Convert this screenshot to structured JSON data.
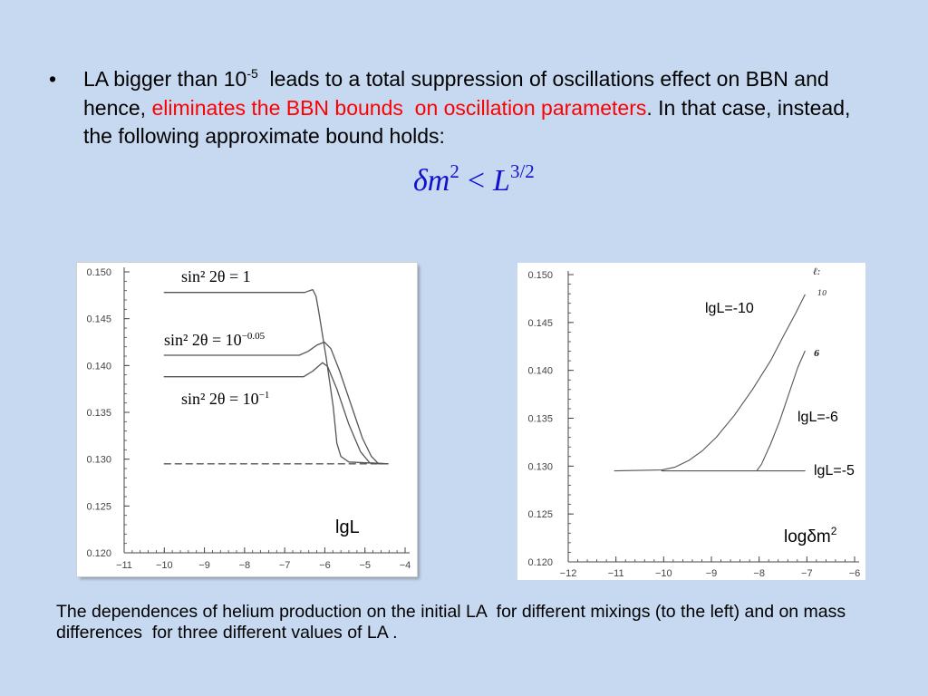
{
  "slide": {
    "bullet_symbol": "•",
    "bullet": {
      "l1_a": "LA bigger than 10",
      "l1_sup": "-5",
      "l1_b": "  leads to a total suppression of oscillations effect on BBN and",
      "l2_a": "hence, ",
      "l2_red": "eliminates the BBN bounds  on oscillation parameters",
      "l2_b": ". In that case, instead,",
      "l3": "the following approximate bound holds:"
    },
    "formula": {
      "lhs": "δm",
      "lhs_sup": "2",
      "op": "<",
      "rhs": "L",
      "rhs_sup": "3/2"
    },
    "caption": {
      "line1": "The dependences of helium production on the initial LA  for different mixings (to the left) and on mass",
      "line2": "differences  for three different values of LA ."
    }
  },
  "colors": {
    "background": "#c6d9f0",
    "text": "#000000",
    "highlight": "#ff0000",
    "formula": "#1212cc",
    "chart_background": "#ffffff",
    "curve": "#555555",
    "axis": "#444444"
  },
  "chart_data": [
    {
      "type": "line",
      "title": "",
      "xlabel": "lgL",
      "ylabel": "",
      "xlim": [
        -11,
        -4
      ],
      "ylim": [
        0.12,
        0.15
      ],
      "grid": false,
      "x_ticks": [
        -11,
        -10,
        -9,
        -8,
        -7,
        -6,
        -5,
        -4
      ],
      "x_tick_labels": [
        "−11",
        "−10",
        "−9",
        "−8",
        "−7",
        "−6",
        "−5",
        "−4"
      ],
      "y_ticks": [
        0.15,
        0.145,
        0.14,
        0.135,
        0.13,
        0.125,
        0.12
      ],
      "y_tick_labels": [
        "0.150",
        "0.145",
        "0.140",
        "0.135",
        "0.130",
        "0.125",
        "0.120"
      ],
      "series": [
        {
          "name": "sin² 2θ = 1",
          "style": "solid",
          "x": [
            -10.0,
            -6.5,
            -6.38,
            -6.3,
            -6.22,
            -6.15,
            -5.97,
            -5.79,
            -5.7,
            -5.6,
            -5.4,
            -4.43
          ],
          "y": [
            0.1478,
            0.1478,
            0.148,
            0.1481,
            0.1474,
            0.1457,
            0.1409,
            0.1356,
            0.1317,
            0.1303,
            0.1297,
            0.1295
          ]
        },
        {
          "name": "sin² 2θ = 10",
          "name_exp": "−0.05",
          "style": "solid",
          "x": [
            -10.0,
            -6.64,
            -6.42,
            -6.19,
            -6.01,
            -5.85,
            -5.63,
            -5.29,
            -5.06,
            -4.84,
            -4.66,
            -4.43
          ],
          "y": [
            0.1411,
            0.1411,
            0.1415,
            0.1422,
            0.1425,
            0.1418,
            0.1394,
            0.1351,
            0.1322,
            0.1303,
            0.1295,
            0.1295
          ]
        },
        {
          "name": "sin² 2θ = 10",
          "name_exp": "−1",
          "style": "solid",
          "x": [
            -10.0,
            -6.53,
            -6.3,
            -6.06,
            -5.93,
            -5.7,
            -5.4,
            -5.11,
            -4.88,
            -4.43
          ],
          "y": [
            0.1388,
            0.1388,
            0.1394,
            0.1403,
            0.1399,
            0.1375,
            0.1337,
            0.1308,
            0.1296,
            0.1295
          ]
        },
        {
          "style": "dashed",
          "x": [
            -10.0,
            -4.43
          ],
          "y": [
            0.1295,
            0.1295
          ]
        }
      ]
    },
    {
      "type": "line",
      "title": "",
      "xlabel": "logδm",
      "xlabel_sup": "2",
      "ylabel": "",
      "xlim": [
        -12,
        -6
      ],
      "ylim": [
        0.12,
        0.15
      ],
      "grid": false,
      "x_ticks": [
        -12,
        -11,
        -10,
        -9,
        -8,
        -7,
        -6
      ],
      "x_tick_labels": [
        "−12",
        "−11",
        "−10",
        "−9",
        "−8",
        "−7",
        "−6"
      ],
      "y_ticks": [
        0.15,
        0.145,
        0.14,
        0.135,
        0.13,
        0.125,
        0.12
      ],
      "y_tick_labels": [
        "0.150",
        "0.145",
        "0.140",
        "0.135",
        "0.130",
        "0.125",
        "0.120"
      ],
      "end_labels": [
        "ℓ:",
        "10",
        "6"
      ],
      "series": [
        {
          "name": "lgL=-10",
          "style": "solid",
          "x": [
            -11.03,
            -10.04,
            -9.76,
            -9.47,
            -9.19,
            -8.9,
            -8.52,
            -8.14,
            -7.76,
            -7.48,
            -7.23,
            -7.04
          ],
          "y": [
            0.1295,
            0.1296,
            0.1299,
            0.1306,
            0.1316,
            0.133,
            0.1353,
            0.138,
            0.141,
            0.1437,
            0.146,
            0.1479
          ]
        },
        {
          "name": "lgL=-6",
          "style": "solid",
          "x": [
            -8.05,
            -7.95,
            -7.76,
            -7.57,
            -7.38,
            -7.19,
            -7.04
          ],
          "y": [
            0.1295,
            0.1302,
            0.1323,
            0.1347,
            0.1375,
            0.1403,
            0.142
          ]
        },
        {
          "name": "lgL=-5",
          "style": "solid",
          "x": [
            -10.04,
            -7.04
          ],
          "y": [
            0.1295,
            0.1295
          ]
        }
      ]
    }
  ]
}
